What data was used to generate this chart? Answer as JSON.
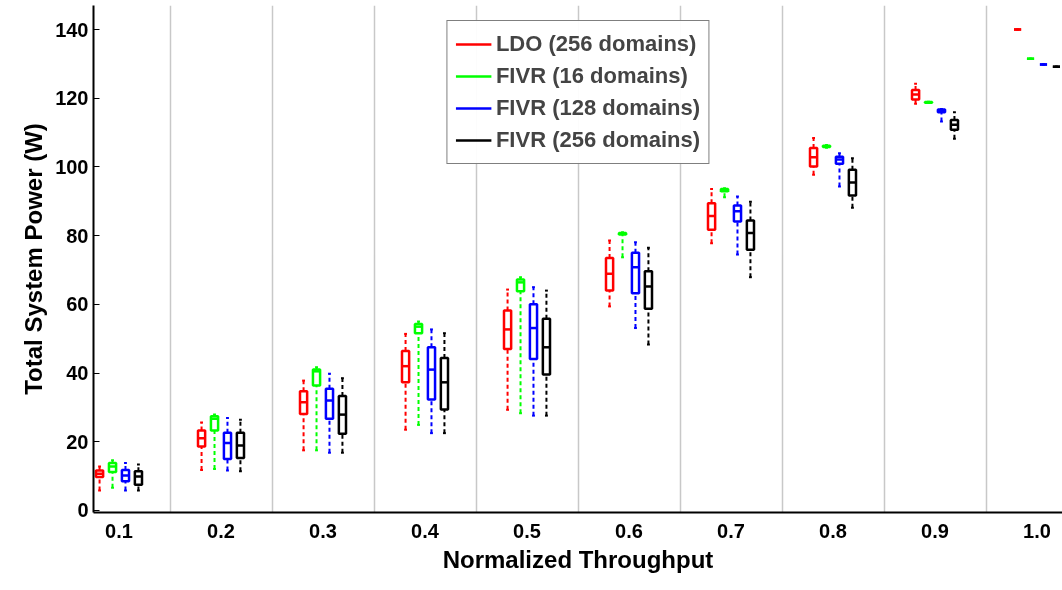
{
  "chart_data": {
    "type": "box",
    "xlabel": "Normalized Throughput",
    "ylabel": "Total System Power (W)",
    "categories": [
      "0.1",
      "0.2",
      "0.3",
      "0.4",
      "0.5",
      "0.6",
      "0.7",
      "0.8",
      "0.9",
      "1.0"
    ],
    "ylim": [
      -0.6,
      147
    ],
    "yticks": [
      0,
      20,
      40,
      60,
      80,
      100,
      120,
      140
    ],
    "grid": "x",
    "legend": "top",
    "line_style": "dashed",
    "series": [
      {
        "name": "LDO (256 domains)",
        "color": "#ff0000",
        "boxes": [
          {
            "low": 5.8,
            "q1": 9.7,
            "median": 10.7,
            "q3": 11.6,
            "high": 12.8
          },
          {
            "low": 11.8,
            "q1": 18.6,
            "median": 21.0,
            "q3": 23.3,
            "high": 25.6
          },
          {
            "low": 17.5,
            "q1": 28.1,
            "median": 31.5,
            "q3": 34.7,
            "high": 37.8
          },
          {
            "low": 23.5,
            "q1": 37.3,
            "median": 42.0,
            "q3": 46.4,
            "high": 51.4
          },
          {
            "low": 29.3,
            "q1": 47.0,
            "median": 52.7,
            "q3": 58.2,
            "high": 64.3
          },
          {
            "low": 59.4,
            "q1": 64.0,
            "median": 68.9,
            "q3": 73.5,
            "high": 78.6
          },
          {
            "low": 77.8,
            "q1": 81.7,
            "median": 85.7,
            "q3": 89.4,
            "high": 93.6
          },
          {
            "low": 97.7,
            "q1": 100.1,
            "median": 102.8,
            "q3": 105.5,
            "high": 108.4
          },
          {
            "low": 118.4,
            "q1": 119.6,
            "median": 121.1,
            "q3": 122.4,
            "high": 124.2
          },
          {
            "low": 140,
            "q1": 140,
            "median": 140,
            "q3": 140,
            "high": 140
          }
        ]
      },
      {
        "name": "FIVR (16 domains)",
        "color": "#00ff00",
        "boxes": [
          {
            "low": 6.6,
            "q1": 11.2,
            "median": 12.8,
            "q3": 13.8,
            "high": 14.6
          },
          {
            "low": 12.1,
            "q1": 23.3,
            "median": 26.7,
            "q3": 27.4,
            "high": 27.9
          },
          {
            "low": 17.5,
            "q1": 36.4,
            "median": 40.5,
            "q3": 41.0,
            "high": 41.7
          },
          {
            "low": 24.9,
            "q1": 51.6,
            "median": 53.5,
            "q3": 54.3,
            "high": 55.0
          },
          {
            "low": 28.3,
            "q1": 63.8,
            "median": 66.4,
            "q3": 67.2,
            "high": 67.9
          },
          {
            "low": 73.7,
            "q1": 80.3,
            "median": 80.6,
            "q3": 80.8,
            "high": 81.0
          },
          {
            "low": 91.2,
            "q1": 92.9,
            "median": 93.5,
            "q3": 93.6,
            "high": 93.8
          },
          {
            "low": 105.6,
            "q1": 105.8,
            "median": 106.0,
            "q3": 106.2,
            "high": 106.4
          },
          {
            "low": 118.6,
            "q1": 118.7,
            "median": 118.8,
            "q3": 118.9,
            "high": 119.0
          },
          {
            "low": 131.5,
            "q1": 131.5,
            "median": 131.5,
            "q3": 131.5,
            "high": 131.5
          }
        ]
      },
      {
        "name": "FIVR (128 domains)",
        "color": "#0000ff",
        "boxes": [
          {
            "low": 5.8,
            "q1": 8.5,
            "median": 10.2,
            "q3": 11.8,
            "high": 13.8
          },
          {
            "low": 11.6,
            "q1": 15.0,
            "median": 19.6,
            "q3": 22.6,
            "high": 26.9
          },
          {
            "low": 16.8,
            "q1": 26.7,
            "median": 32.0,
            "q3": 35.4,
            "high": 39.8
          },
          {
            "low": 22.5,
            "q1": 32.3,
            "median": 41.0,
            "q3": 47.5,
            "high": 52.7
          },
          {
            "low": 27.6,
            "q1": 44.1,
            "median": 53.1,
            "q3": 60.0,
            "high": 65.0
          },
          {
            "low": 53.1,
            "q1": 63.2,
            "median": 70.8,
            "q3": 75.0,
            "high": 78.1
          },
          {
            "low": 74.5,
            "q1": 84.1,
            "median": 87.1,
            "q3": 88.8,
            "high": 91.4
          },
          {
            "low": 94.3,
            "q1": 100.9,
            "median": 102.2,
            "q3": 103.0,
            "high": 104.0
          },
          {
            "low": 113.2,
            "q1": 115.9,
            "median": 116.4,
            "q3": 116.7,
            "high": 116.9
          },
          {
            "low": 129.8,
            "q1": 129.8,
            "median": 129.8,
            "q3": 129.8,
            "high": 129.8
          }
        ]
      },
      {
        "name": "FIVR (256 domains)",
        "color": "#000000",
        "boxes": [
          {
            "low": 5.8,
            "q1": 7.5,
            "median": 9.9,
            "q3": 11.4,
            "high": 13.4
          },
          {
            "low": 11.4,
            "q1": 15.3,
            "median": 18.9,
            "q3": 22.6,
            "high": 26.4
          },
          {
            "low": 16.8,
            "q1": 22.3,
            "median": 27.9,
            "q3": 33.3,
            "high": 38.5
          },
          {
            "low": 22.5,
            "q1": 29.4,
            "median": 37.3,
            "q3": 44.4,
            "high": 51.6
          },
          {
            "low": 27.6,
            "q1": 39.6,
            "median": 47.5,
            "q3": 55.8,
            "high": 64.0
          },
          {
            "low": 48.3,
            "q1": 58.7,
            "median": 65.2,
            "q3": 69.6,
            "high": 76.5
          },
          {
            "low": 67.9,
            "q1": 75.9,
            "median": 80.8,
            "q3": 84.4,
            "high": 89.9
          },
          {
            "low": 88.1,
            "q1": 91.7,
            "median": 95.5,
            "q3": 99.2,
            "high": 102.5
          },
          {
            "low": 108.2,
            "q1": 110.8,
            "median": 112.3,
            "q3": 113.7,
            "high": 115.9
          },
          {
            "low": 129.2,
            "q1": 129.2,
            "median": 129.2,
            "q3": 129.2,
            "high": 129.2
          }
        ]
      }
    ]
  }
}
